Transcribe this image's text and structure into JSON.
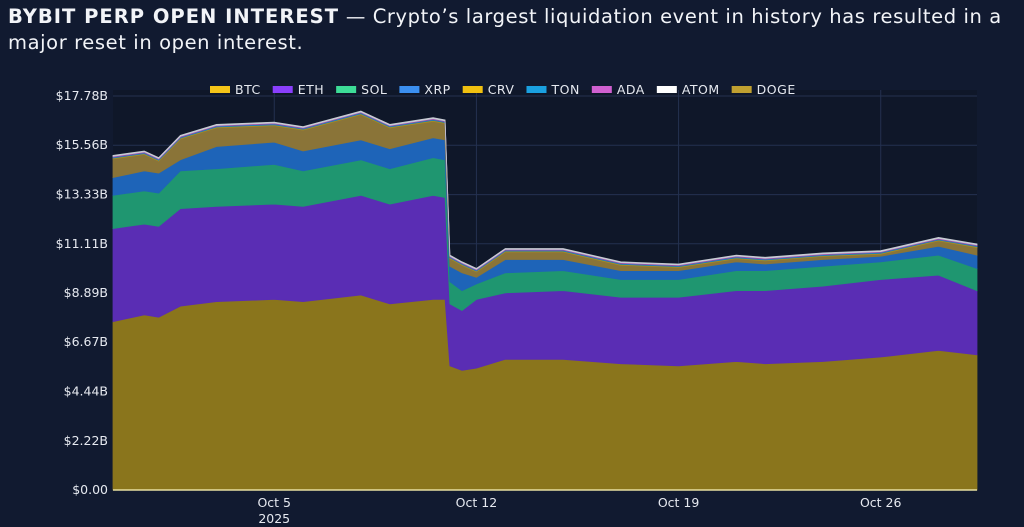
{
  "header": {
    "title_bold": "BYBIT PERP OPEN INTEREST",
    "title_rest": " — Crypto’s largest liquidation event in history has resulted in a major reset in open interest."
  },
  "chart_data": {
    "type": "area",
    "stacked": true,
    "title": "",
    "xlabel": "",
    "ylabel": "",
    "ylim": [
      0,
      17.78
    ],
    "xlim": [
      "2025-09-29T10:00",
      "2025-10-29T08:00"
    ],
    "yticks": [
      0,
      2.22,
      4.44,
      6.67,
      8.89,
      11.11,
      13.33,
      15.56,
      17.78
    ],
    "ytick_labels": [
      "$0.00",
      "$2.22B",
      "$4.44B",
      "$6.67B",
      "$8.89B",
      "$11.11B",
      "$13.33B",
      "$15.56B",
      "$17.78B"
    ],
    "xticks": [
      "2025-10-05",
      "2025-10-12",
      "2025-10-19",
      "2025-10-26"
    ],
    "xtick_labels": [
      "Oct 5",
      "Oct 12",
      "Oct 19",
      "Oct 26"
    ],
    "xtick_sublabel": "2025",
    "grid": true,
    "legend_placement": "top-center",
    "unit": "USD billions",
    "x": [
      "2025-09-29T10:00",
      "2025-09-30T12:00",
      "2025-10-01T00:00",
      "2025-10-01T18:00",
      "2025-10-03T00:00",
      "2025-10-05T00:00",
      "2025-10-06T00:00",
      "2025-10-08T00:00",
      "2025-10-09T00:00",
      "2025-10-10T12:00",
      "2025-10-10T22:00",
      "2025-10-11T02:00",
      "2025-10-11T12:00",
      "2025-10-12T00:00",
      "2025-10-13T00:00",
      "2025-10-15T00:00",
      "2025-10-17T00:00",
      "2025-10-19T00:00",
      "2025-10-21T00:00",
      "2025-10-22T00:00",
      "2025-10-24T00:00",
      "2025-10-26T00:00",
      "2025-10-28T00:00",
      "2025-10-29T08:00"
    ],
    "series": [
      {
        "name": "BTC",
        "color": "#f5c518",
        "fill": "#8a751c",
        "values": [
          7.6,
          7.9,
          7.8,
          8.3,
          8.5,
          8.6,
          8.5,
          8.8,
          8.4,
          8.6,
          8.6,
          5.6,
          5.4,
          5.5,
          5.9,
          5.9,
          5.7,
          5.6,
          5.8,
          5.7,
          5.8,
          6.0,
          6.3,
          6.1
        ]
      },
      {
        "name": "ETH",
        "color": "#8a3ffc",
        "fill": "#5a2db4",
        "values": [
          4.2,
          4.1,
          4.1,
          4.4,
          4.3,
          4.3,
          4.3,
          4.5,
          4.5,
          4.7,
          4.6,
          2.8,
          2.7,
          3.1,
          3.0,
          3.1,
          3.0,
          3.1,
          3.2,
          3.3,
          3.4,
          3.5,
          3.4,
          2.9
        ]
      },
      {
        "name": "SOL",
        "color": "#3ddc97",
        "fill": "#1f9670",
        "values": [
          1.5,
          1.5,
          1.5,
          1.7,
          1.7,
          1.8,
          1.6,
          1.6,
          1.6,
          1.7,
          1.7,
          1.0,
          0.9,
          0.7,
          0.9,
          0.9,
          0.8,
          0.8,
          0.9,
          0.9,
          0.9,
          0.8,
          0.9,
          1.0
        ]
      },
      {
        "name": "XRP",
        "color": "#3b8ff0",
        "fill": "#1e64b8",
        "values": [
          0.8,
          0.9,
          0.9,
          0.5,
          1.0,
          1.0,
          0.9,
          0.9,
          0.9,
          0.9,
          0.9,
          0.7,
          0.8,
          0.3,
          0.6,
          0.5,
          0.4,
          0.4,
          0.4,
          0.3,
          0.3,
          0.25,
          0.4,
          0.6
        ]
      },
      {
        "name": "DOGE",
        "color": "#c0a030",
        "fill": "#8a7438",
        "values": [
          0.84,
          0.74,
          0.54,
          0.94,
          0.84,
          0.74,
          0.94,
          1.14,
          0.94,
          0.74,
          0.74,
          0.34,
          0.34,
          0.24,
          0.34,
          0.34,
          0.24,
          0.14,
          0.14,
          0.14,
          0.14,
          0.09,
          0.24,
          0.34
        ]
      },
      {
        "name": "CRV",
        "color": "#f0c010",
        "fill": "#a88a20",
        "values": [
          0.04,
          0.04,
          0.04,
          0.04,
          0.04,
          0.04,
          0.04,
          0.04,
          0.04,
          0.04,
          0.04,
          0.04,
          0.04,
          0.04,
          0.04,
          0.04,
          0.04,
          0.04,
          0.04,
          0.04,
          0.04,
          0.04,
          0.04,
          0.04
        ]
      },
      {
        "name": "TON",
        "color": "#1aa0e0",
        "fill": "#1a80b8",
        "values": [
          0.04,
          0.04,
          0.04,
          0.04,
          0.04,
          0.04,
          0.04,
          0.04,
          0.04,
          0.04,
          0.04,
          0.04,
          0.04,
          0.04,
          0.04,
          0.04,
          0.04,
          0.04,
          0.04,
          0.04,
          0.04,
          0.04,
          0.04,
          0.04
        ]
      },
      {
        "name": "ADA",
        "color": "#d060d0",
        "fill": "#9a50a8",
        "values": [
          0.04,
          0.04,
          0.04,
          0.04,
          0.04,
          0.04,
          0.04,
          0.04,
          0.04,
          0.04,
          0.04,
          0.04,
          0.04,
          0.04,
          0.04,
          0.04,
          0.04,
          0.04,
          0.04,
          0.04,
          0.04,
          0.04,
          0.04,
          0.04
        ]
      },
      {
        "name": "ATOM",
        "color": "#ffffff",
        "fill": "#c8ccd4",
        "values": [
          0.04,
          0.04,
          0.04,
          0.04,
          0.04,
          0.04,
          0.04,
          0.04,
          0.04,
          0.04,
          0.04,
          0.04,
          0.04,
          0.04,
          0.04,
          0.04,
          0.04,
          0.04,
          0.04,
          0.04,
          0.04,
          0.04,
          0.04,
          0.04
        ]
      }
    ],
    "legend_order": [
      "BTC",
      "ETH",
      "SOL",
      "XRP",
      "CRV",
      "TON",
      "ADA",
      "ATOM",
      "DOGE"
    ]
  }
}
